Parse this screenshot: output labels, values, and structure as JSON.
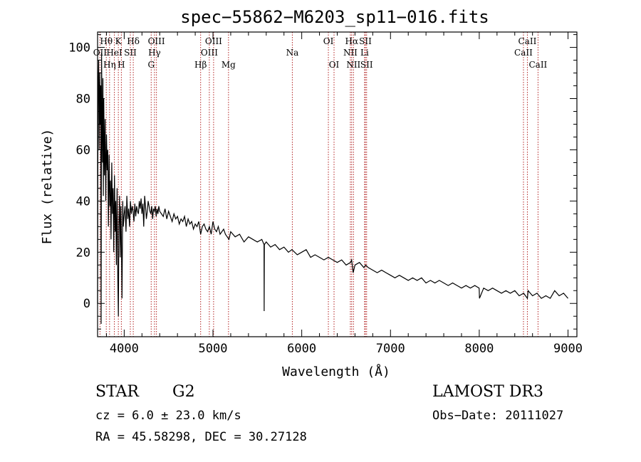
{
  "header": {
    "title": "spec−55862−M6203_sp11−016.fits"
  },
  "info": {
    "class": "STAR",
    "subclass": "G2",
    "survey": "LAMOST DR3",
    "cz": "cz = 6.0 ± 23.0 km/s",
    "obs_date": "Obs−Date: 20111027",
    "radec": "RA =  45.58298, DEC =  30.27128"
  },
  "colors": {
    "line": "#000000",
    "marker": "#b22222"
  },
  "chart_data": {
    "type": "line",
    "title": "spec−55862−M6203_sp11−016.fits",
    "xlabel": "Wavelength (Å)",
    "ylabel": "Flux (relative)",
    "xlim": [
      3700,
      9100
    ],
    "ylim": [
      -13,
      106
    ],
    "xticks": [
      4000,
      5000,
      6000,
      7000,
      8000,
      9000
    ],
    "yticks": [
      0,
      20,
      40,
      60,
      80,
      100
    ],
    "series": [
      {
        "name": "spectrum",
        "x": [
          3700,
          3705,
          3712,
          3718,
          3725,
          3730,
          3735,
          3740,
          3745,
          3750,
          3755,
          3760,
          3765,
          3770,
          3778,
          3785,
          3792,
          3800,
          3808,
          3815,
          3822,
          3830,
          3838,
          3845,
          3852,
          3860,
          3868,
          3875,
          3882,
          3890,
          3898,
          3905,
          3912,
          3920,
          3928,
          3934,
          3940,
          3948,
          3955,
          3962,
          3968,
          3975,
          3983,
          3990,
          4000,
          4010,
          4020,
          4030,
          4040,
          4050,
          4060,
          4070,
          4080,
          4090,
          4100,
          4110,
          4120,
          4130,
          4140,
          4150,
          4160,
          4170,
          4180,
          4190,
          4200,
          4210,
          4220,
          4230,
          4240,
          4250,
          4260,
          4270,
          4280,
          4290,
          4300,
          4310,
          4320,
          4330,
          4340,
          4350,
          4360,
          4370,
          4380,
          4390,
          4400,
          4420,
          4440,
          4460,
          4480,
          4500,
          4520,
          4540,
          4560,
          4580,
          4600,
          4620,
          4640,
          4660,
          4680,
          4700,
          4720,
          4740,
          4760,
          4780,
          4800,
          4820,
          4840,
          4861,
          4880,
          4900,
          4920,
          4940,
          4960,
          4980,
          5000,
          5020,
          5040,
          5060,
          5080,
          5100,
          5120,
          5140,
          5160,
          5180,
          5200,
          5250,
          5300,
          5350,
          5400,
          5450,
          5500,
          5550,
          5575,
          5577,
          5579,
          5600,
          5650,
          5700,
          5750,
          5800,
          5850,
          5890,
          5950,
          6000,
          6050,
          6100,
          6150,
          6200,
          6250,
          6300,
          6350,
          6400,
          6450,
          6500,
          6550,
          6562,
          6580,
          6600,
          6650,
          6700,
          6720,
          6750,
          6800,
          6850,
          6900,
          6950,
          7000,
          7050,
          7100,
          7150,
          7200,
          7250,
          7300,
          7350,
          7400,
          7450,
          7500,
          7550,
          7600,
          7650,
          7700,
          7750,
          7800,
          7850,
          7900,
          7950,
          7998,
          8000,
          8002,
          8050,
          8100,
          8150,
          8200,
          8250,
          8300,
          8350,
          8400,
          8450,
          8500,
          8542,
          8550,
          8600,
          8650,
          8700,
          8750,
          8800,
          8850,
          8900,
          8950,
          9000
        ],
        "y": [
          0,
          80,
          95,
          60,
          90,
          70,
          85,
          -8,
          98,
          75,
          55,
          88,
          42,
          80,
          50,
          72,
          40,
          66,
          52,
          60,
          30,
          58,
          38,
          48,
          25,
          55,
          35,
          45,
          20,
          50,
          28,
          40,
          15,
          45,
          10,
          -5,
          30,
          42,
          18,
          38,
          25,
          2,
          40,
          30,
          35,
          38,
          28,
          42,
          33,
          37,
          30,
          40,
          35,
          38,
          36,
          32,
          39,
          34,
          38,
          36,
          35,
          40,
          37,
          41,
          35,
          39,
          30,
          42,
          38,
          33,
          36,
          40,
          38,
          36,
          35,
          38,
          33,
          37,
          36,
          38,
          34,
          37,
          35,
          38,
          36,
          35,
          34,
          37,
          33,
          36,
          34,
          32,
          35,
          33,
          34,
          31,
          33,
          32,
          34,
          30,
          33,
          31,
          32,
          29,
          31,
          30,
          32,
          27,
          30,
          31,
          29,
          28,
          30,
          27,
          32,
          29,
          28,
          30,
          27,
          28,
          29,
          27,
          26,
          25,
          28,
          26,
          27,
          24,
          26,
          25,
          24,
          25,
          23,
          -3,
          23,
          24,
          22,
          23,
          21,
          22,
          20,
          21,
          19,
          20,
          21,
          18,
          19,
          18,
          17,
          18,
          17,
          16,
          17,
          15,
          16,
          17,
          12,
          15,
          16,
          14,
          15,
          14,
          13,
          12,
          13,
          12,
          11,
          10,
          11,
          10,
          9,
          10,
          9,
          10,
          8,
          9,
          8,
          9,
          8,
          7,
          8,
          7,
          6,
          7,
          6,
          7,
          6,
          5,
          2,
          6,
          5,
          6,
          5,
          4,
          5,
          4,
          5,
          3,
          4,
          2,
          5,
          3,
          4,
          2,
          3,
          2,
          5,
          3,
          4,
          2
        ]
      }
    ],
    "lines": [
      {
        "label": "OII",
        "wave": 3727,
        "row": 2
      },
      {
        "label": "Hθ",
        "wave": 3798,
        "row": 1
      },
      {
        "label": "Hη",
        "wave": 3835,
        "row": 3
      },
      {
        "label": "HeI",
        "wave": 3889,
        "row": 2
      },
      {
        "label": "K",
        "wave": 3934,
        "row": 1
      },
      {
        "label": "H",
        "wave": 3968,
        "row": 3
      },
      {
        "label": "SII",
        "wave": 4069,
        "row": 2
      },
      {
        "label": "Hδ",
        "wave": 4102,
        "row": 1
      },
      {
        "label": "G",
        "wave": 4304,
        "row": 3
      },
      {
        "label": "Hγ",
        "wave": 4341,
        "row": 2
      },
      {
        "label": "OIII",
        "wave": 4363,
        "row": 1
      },
      {
        "label": "Hβ",
        "wave": 4861,
        "row": 3
      },
      {
        "label": "OIII",
        "wave": 4959,
        "row": 2
      },
      {
        "label": "OIII",
        "wave": 5007,
        "row": 1
      },
      {
        "label": "Mg",
        "wave": 5175,
        "row": 3
      },
      {
        "label": "Na",
        "wave": 5894,
        "row": 2
      },
      {
        "label": "OI",
        "wave": 6300,
        "row": 1
      },
      {
        "label": "OI",
        "wave": 6364,
        "row": 3
      },
      {
        "label": "NII",
        "wave": 6548,
        "row": 2
      },
      {
        "label": "Hα",
        "wave": 6563,
        "row": 1
      },
      {
        "label": "NII",
        "wave": 6583,
        "row": 3
      },
      {
        "label": "Li",
        "wave": 6708,
        "row": 2
      },
      {
        "label": "SII",
        "wave": 6717,
        "row": 1
      },
      {
        "label": "SII",
        "wave": 6731,
        "row": 3
      },
      {
        "label": "CaII",
        "wave": 8498,
        "row": 2
      },
      {
        "label": "CaII",
        "wave": 8542,
        "row": 1
      },
      {
        "label": "CaII",
        "wave": 8662,
        "row": 3
      }
    ]
  }
}
